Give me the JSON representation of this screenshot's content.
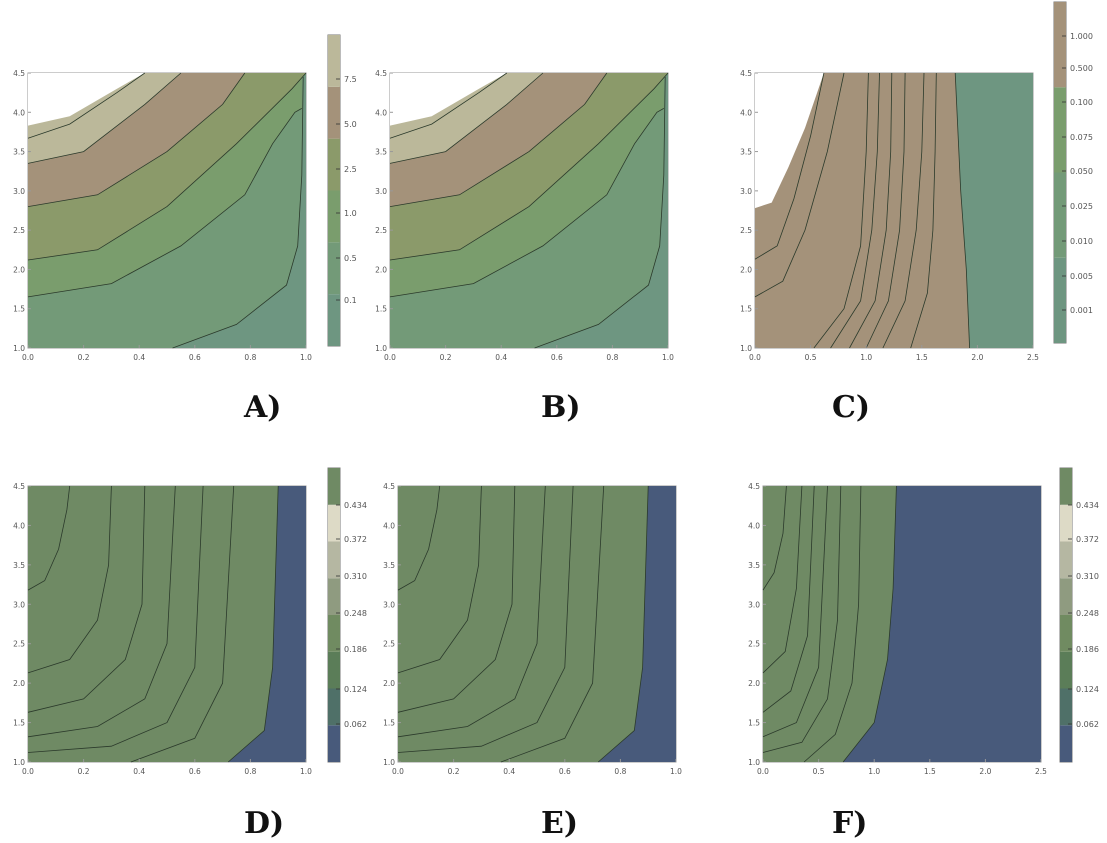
{
  "chart_data": [
    {
      "panel": "A)",
      "type": "contour",
      "xlim": [
        0,
        1
      ],
      "ylim": [
        1,
        4.5
      ],
      "xticks": [
        "0.0",
        "0.2",
        "0.4",
        "0.6",
        "0.8",
        "1.0"
      ],
      "yticks": [
        "1.0",
        "1.5",
        "2.0",
        "2.5",
        "3.0",
        "3.5",
        "4.0",
        "4.5"
      ],
      "colorbar_ticks": [
        "0.1",
        "0.5",
        "1.0",
        "2.5",
        "5.0",
        "7.5"
      ],
      "colors": [
        "#6e9681",
        "#739a78",
        "#7a9d6d",
        "#8b9a6a",
        "#a4927a",
        "#bbb89a"
      ],
      "contours": [
        [
          [
            0.52,
            1.0
          ],
          [
            0.75,
            1.3
          ],
          [
            0.93,
            1.8
          ],
          [
            0.97,
            2.3
          ],
          [
            0.985,
            3.2
          ],
          [
            0.99,
            4.45
          ]
        ],
        [
          [
            0.0,
            1.65
          ],
          [
            0.3,
            1.82
          ],
          [
            0.55,
            2.3
          ],
          [
            0.78,
            2.95
          ],
          [
            0.88,
            3.6
          ],
          [
            0.96,
            4.0
          ],
          [
            0.985,
            4.05
          ]
        ],
        [
          [
            0.0,
            2.12
          ],
          [
            0.25,
            2.25
          ],
          [
            0.5,
            2.8
          ],
          [
            0.75,
            3.6
          ],
          [
            0.95,
            4.3
          ],
          [
            1.0,
            4.5
          ]
        ],
        [
          [
            0.0,
            2.8
          ],
          [
            0.25,
            2.95
          ],
          [
            0.5,
            3.5
          ],
          [
            0.7,
            4.1
          ],
          [
            0.78,
            4.5
          ]
        ],
        [
          [
            0.0,
            3.35
          ],
          [
            0.2,
            3.5
          ],
          [
            0.42,
            4.1
          ],
          [
            0.55,
            4.5
          ]
        ],
        [
          [
            0.0,
            3.67
          ],
          [
            0.15,
            3.85
          ],
          [
            0.32,
            4.25
          ],
          [
            0.42,
            4.5
          ]
        ]
      ],
      "blank_region": [
        [
          0.0,
          3.83
        ],
        [
          0.15,
          3.95
        ],
        [
          0.32,
          4.3
        ],
        [
          0.42,
          4.5
        ],
        [
          0.0,
          4.5
        ]
      ]
    },
    {
      "panel": "B)",
      "type": "contour",
      "xlim": [
        0,
        1
      ],
      "ylim": [
        1,
        4.5
      ],
      "xticks": [
        "0.0",
        "0.2",
        "0.4",
        "0.6",
        "0.8",
        "1.0"
      ],
      "yticks": [
        "1.0",
        "1.5",
        "2.0",
        "2.5",
        "3.0",
        "3.5",
        "4.0",
        "4.5"
      ],
      "colors": [
        "#6e9681",
        "#739a78",
        "#7a9d6d",
        "#8b9a6a",
        "#a4927a",
        "#bbb89a"
      ],
      "contours": [
        [
          [
            0.52,
            1.0
          ],
          [
            0.75,
            1.3
          ],
          [
            0.93,
            1.8
          ],
          [
            0.97,
            2.3
          ],
          [
            0.985,
            3.2
          ],
          [
            0.99,
            4.45
          ]
        ],
        [
          [
            0.0,
            1.65
          ],
          [
            0.3,
            1.82
          ],
          [
            0.55,
            2.3
          ],
          [
            0.78,
            2.95
          ],
          [
            0.88,
            3.6
          ],
          [
            0.96,
            4.0
          ],
          [
            0.985,
            4.05
          ]
        ],
        [
          [
            0.0,
            2.12
          ],
          [
            0.25,
            2.25
          ],
          [
            0.5,
            2.8
          ],
          [
            0.75,
            3.6
          ],
          [
            0.95,
            4.3
          ],
          [
            1.0,
            4.5
          ]
        ],
        [
          [
            0.0,
            2.8
          ],
          [
            0.25,
            2.95
          ],
          [
            0.5,
            3.5
          ],
          [
            0.7,
            4.1
          ],
          [
            0.78,
            4.5
          ]
        ],
        [
          [
            0.0,
            3.35
          ],
          [
            0.2,
            3.5
          ],
          [
            0.42,
            4.1
          ],
          [
            0.55,
            4.5
          ]
        ],
        [
          [
            0.0,
            3.67
          ],
          [
            0.15,
            3.85
          ],
          [
            0.32,
            4.25
          ],
          [
            0.42,
            4.5
          ]
        ]
      ],
      "blank_region": [
        [
          0.0,
          3.83
        ],
        [
          0.15,
          3.95
        ],
        [
          0.32,
          4.3
        ],
        [
          0.42,
          4.5
        ],
        [
          0.0,
          4.5
        ]
      ]
    },
    {
      "panel": "C)",
      "type": "contour",
      "xlim": [
        0,
        2.5
      ],
      "ylim": [
        1,
        4.5
      ],
      "xticks": [
        "0.0",
        "0.5",
        "1.0",
        "1.5",
        "2.0",
        "2.5"
      ],
      "yticks": [
        "1.0",
        "1.5",
        "2.0",
        "2.5",
        "3.0",
        "3.5",
        "4.0",
        "4.5"
      ],
      "colorbar_ticks": [
        "0.001",
        "0.005",
        "0.010",
        "0.025",
        "0.050",
        "0.075",
        "0.100",
        "0.500",
        "1.000"
      ],
      "colors": [
        "#6e9681",
        "#739a78",
        "#7a9d6d",
        "#a4927a"
      ],
      "contours": [
        [
          [
            0.53,
            1.0
          ],
          [
            0.8,
            1.5
          ],
          [
            0.95,
            2.3
          ],
          [
            1.0,
            3.5
          ],
          [
            1.02,
            4.5
          ]
        ],
        [
          [
            0.68,
            1.0
          ],
          [
            0.95,
            1.6
          ],
          [
            1.05,
            2.5
          ],
          [
            1.1,
            3.5
          ],
          [
            1.12,
            4.5
          ]
        ],
        [
          [
            0.85,
            1.0
          ],
          [
            1.08,
            1.6
          ],
          [
            1.18,
            2.5
          ],
          [
            1.22,
            3.5
          ],
          [
            1.23,
            4.5
          ]
        ],
        [
          [
            1.0,
            1.0
          ],
          [
            1.2,
            1.6
          ],
          [
            1.3,
            2.5
          ],
          [
            1.34,
            3.5
          ],
          [
            1.35,
            4.5
          ]
        ],
        [
          [
            1.15,
            1.0
          ],
          [
            1.35,
            1.6
          ],
          [
            1.45,
            2.5
          ],
          [
            1.5,
            3.5
          ],
          [
            1.52,
            4.5
          ]
        ],
        [
          [
            1.4,
            1.0
          ],
          [
            1.55,
            1.7
          ],
          [
            1.6,
            2.5
          ],
          [
            1.62,
            3.5
          ],
          [
            1.63,
            4.5
          ]
        ],
        [
          [
            1.93,
            1.0
          ],
          [
            1.9,
            2.0
          ],
          [
            1.85,
            3.0
          ],
          [
            1.8,
            4.5
          ]
        ],
        [
          [
            0.0,
            1.65
          ],
          [
            0.25,
            1.85
          ],
          [
            0.45,
            2.5
          ],
          [
            0.65,
            3.5
          ],
          [
            0.8,
            4.5
          ]
        ],
        [
          [
            0.0,
            2.13
          ],
          [
            0.2,
            2.3
          ],
          [
            0.35,
            2.9
          ],
          [
            0.5,
            3.7
          ],
          [
            0.62,
            4.5
          ]
        ]
      ],
      "blank_region": [
        [
          0.0,
          2.78
        ],
        [
          0.15,
          2.85
        ],
        [
          0.3,
          3.3
        ],
        [
          0.45,
          3.8
        ],
        [
          0.62,
          4.5
        ],
        [
          0.0,
          4.5
        ]
      ]
    },
    {
      "panel": "D)",
      "type": "contour",
      "xlim": [
        0,
        1
      ],
      "ylim": [
        1,
        4.5
      ],
      "xticks": [
        "0.0",
        "0.2",
        "0.4",
        "0.6",
        "0.8",
        "1.0"
      ],
      "yticks": [
        "1.0",
        "1.5",
        "2.0",
        "2.5",
        "3.0",
        "3.5",
        "4.0",
        "4.5"
      ],
      "colorbar_ticks": [
        "0.062",
        "0.124",
        "0.186",
        "0.248",
        "0.310",
        "0.372",
        "0.434"
      ],
      "colors": [
        "#485a7b",
        "#4f7068",
        "#5b7d58",
        "#708b61",
        "#8f9b80",
        "#b5b7a2",
        "#dddac6",
        "#6f8a64"
      ],
      "contours": [
        [
          [
            0.0,
            3.18
          ],
          [
            0.06,
            3.3
          ],
          [
            0.11,
            3.7
          ],
          [
            0.14,
            4.2
          ],
          [
            0.15,
            4.5
          ]
        ],
        [
          [
            0.0,
            2.13
          ],
          [
            0.15,
            2.3
          ],
          [
            0.25,
            2.8
          ],
          [
            0.29,
            3.5
          ],
          [
            0.3,
            4.5
          ]
        ],
        [
          [
            0.0,
            1.63
          ],
          [
            0.2,
            1.8
          ],
          [
            0.35,
            2.3
          ],
          [
            0.41,
            3.0
          ],
          [
            0.42,
            4.5
          ]
        ],
        [
          [
            0.0,
            1.32
          ],
          [
            0.25,
            1.45
          ],
          [
            0.42,
            1.8
          ],
          [
            0.5,
            2.5
          ],
          [
            0.53,
            4.5
          ]
        ],
        [
          [
            0.0,
            1.12
          ],
          [
            0.3,
            1.2
          ],
          [
            0.5,
            1.5
          ],
          [
            0.6,
            2.2
          ],
          [
            0.63,
            4.5
          ]
        ],
        [
          [
            0.37,
            1.0
          ],
          [
            0.6,
            1.3
          ],
          [
            0.7,
            2.0
          ],
          [
            0.74,
            4.5
          ]
        ],
        [
          [
            0.72,
            1.0
          ],
          [
            0.85,
            1.4
          ],
          [
            0.88,
            2.2
          ],
          [
            0.9,
            4.5
          ]
        ]
      ]
    },
    {
      "panel": "E)",
      "type": "contour",
      "xlim": [
        0,
        1
      ],
      "ylim": [
        1,
        4.5
      ],
      "xticks": [
        "0.0",
        "0.2",
        "0.4",
        "0.6",
        "0.8",
        "1.0"
      ],
      "yticks": [
        "1.0",
        "1.5",
        "2.0",
        "2.5",
        "3.0",
        "3.5",
        "4.0",
        "4.5"
      ],
      "colors": [
        "#485a7b",
        "#4f7068",
        "#5b7d58",
        "#708b61",
        "#8f9b80",
        "#b5b7a2",
        "#dddac6",
        "#6f8a64"
      ],
      "contours": [
        [
          [
            0.0,
            3.18
          ],
          [
            0.06,
            3.3
          ],
          [
            0.11,
            3.7
          ],
          [
            0.14,
            4.2
          ],
          [
            0.15,
            4.5
          ]
        ],
        [
          [
            0.0,
            2.13
          ],
          [
            0.15,
            2.3
          ],
          [
            0.25,
            2.8
          ],
          [
            0.29,
            3.5
          ],
          [
            0.3,
            4.5
          ]
        ],
        [
          [
            0.0,
            1.63
          ],
          [
            0.2,
            1.8
          ],
          [
            0.35,
            2.3
          ],
          [
            0.41,
            3.0
          ],
          [
            0.42,
            4.5
          ]
        ],
        [
          [
            0.0,
            1.32
          ],
          [
            0.25,
            1.45
          ],
          [
            0.42,
            1.8
          ],
          [
            0.5,
            2.5
          ],
          [
            0.53,
            4.5
          ]
        ],
        [
          [
            0.0,
            1.12
          ],
          [
            0.3,
            1.2
          ],
          [
            0.5,
            1.5
          ],
          [
            0.6,
            2.2
          ],
          [
            0.63,
            4.5
          ]
        ],
        [
          [
            0.37,
            1.0
          ],
          [
            0.6,
            1.3
          ],
          [
            0.7,
            2.0
          ],
          [
            0.74,
            4.5
          ]
        ],
        [
          [
            0.72,
            1.0
          ],
          [
            0.85,
            1.4
          ],
          [
            0.88,
            2.2
          ],
          [
            0.9,
            4.5
          ]
        ]
      ]
    },
    {
      "panel": "F)",
      "type": "contour",
      "xlim": [
        0,
        2.5
      ],
      "ylim": [
        1,
        4.5
      ],
      "xticks": [
        "0.0",
        "0.5",
        "1.0",
        "1.5",
        "2.0",
        "2.5"
      ],
      "yticks": [
        "1.0",
        "1.5",
        "2.0",
        "2.5",
        "3.0",
        "3.5",
        "4.0",
        "4.5"
      ],
      "colorbar_ticks": [
        "0.062",
        "0.124",
        "0.186",
        "0.248",
        "0.310",
        "0.372",
        "0.434"
      ],
      "colors": [
        "#485a7b",
        "#4f7068",
        "#5b7d58",
        "#708b61",
        "#8f9b80",
        "#b5b7a2",
        "#dddac6",
        "#6f8a64"
      ],
      "contours": [
        [
          [
            0.0,
            3.18
          ],
          [
            0.1,
            3.4
          ],
          [
            0.18,
            3.9
          ],
          [
            0.21,
            4.5
          ]
        ],
        [
          [
            0.0,
            2.13
          ],
          [
            0.2,
            2.4
          ],
          [
            0.3,
            3.2
          ],
          [
            0.35,
            4.5
          ]
        ],
        [
          [
            0.0,
            1.63
          ],
          [
            0.25,
            1.9
          ],
          [
            0.4,
            2.6
          ],
          [
            0.46,
            4.5
          ]
        ],
        [
          [
            0.0,
            1.32
          ],
          [
            0.3,
            1.5
          ],
          [
            0.5,
            2.2
          ],
          [
            0.58,
            4.5
          ]
        ],
        [
          [
            0.0,
            1.12
          ],
          [
            0.35,
            1.25
          ],
          [
            0.58,
            1.8
          ],
          [
            0.67,
            2.8
          ],
          [
            0.7,
            4.5
          ]
        ],
        [
          [
            0.37,
            1.0
          ],
          [
            0.65,
            1.35
          ],
          [
            0.8,
            2.0
          ],
          [
            0.86,
            3.0
          ],
          [
            0.88,
            4.5
          ]
        ],
        [
          [
            0.72,
            1.0
          ],
          [
            1.0,
            1.5
          ],
          [
            1.12,
            2.3
          ],
          [
            1.17,
            3.2
          ],
          [
            1.2,
            4.5
          ]
        ]
      ]
    }
  ]
}
